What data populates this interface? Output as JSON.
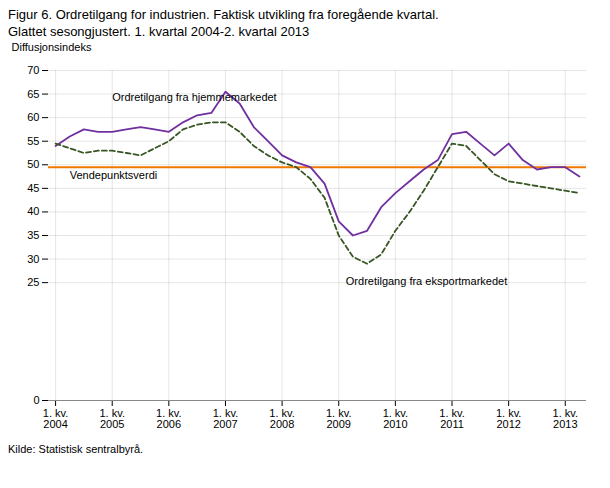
{
  "chart_data": {
    "type": "line",
    "title": "Figur 6. Ordretilgang for industrien. Faktisk utvikling fra foregående kvartal.",
    "subtitle": "Glattet sesongjustert. 1. kvartal 2004-2. kvartal 2013",
    "caption": "Kilde: Statistisk sentralbyrå.",
    "ylabel": "Diffusjonsindeks",
    "categories": [
      "1. kv.\n2004",
      null,
      null,
      null,
      "1. kv.\n2005",
      null,
      null,
      null,
      "1. kv.\n2006",
      null,
      null,
      null,
      "1. kv.\n2007",
      null,
      null,
      null,
      "1. kv.\n2008",
      null,
      null,
      null,
      "1. kv.\n2009",
      null,
      null,
      null,
      "1. kv.\n2010",
      null,
      null,
      null,
      "1. kv.\n2011",
      null,
      null,
      null,
      "1. kv.\n2012",
      null,
      null,
      null,
      "1. kv.\n2013",
      null
    ],
    "series": [
      {
        "name": "Ordretilgang fra hjemmemarkedet",
        "color": "#7030a0",
        "line_style": "solid",
        "values": [
          54.0,
          56.0,
          57.5,
          57.0,
          57.0,
          57.5,
          58.0,
          57.5,
          57.0,
          59.0,
          60.5,
          61.0,
          65.5,
          63.0,
          58.0,
          55.0,
          52.0,
          50.5,
          49.5,
          46.0,
          38.0,
          35.0,
          36.0,
          41.0,
          44.0,
          46.5,
          49.0,
          51.0,
          56.5,
          57.0,
          54.5,
          52.0,
          54.5,
          51.0,
          49.0,
          49.5,
          49.5,
          47.5
        ]
      },
      {
        "name": "Ordretilgang fra eksportmarkedet",
        "color": "#375623",
        "line_style": "dashed",
        "values": [
          54.5,
          53.5,
          52.5,
          53.0,
          53.0,
          52.5,
          52.0,
          53.5,
          55.0,
          57.5,
          58.5,
          59.0,
          59.0,
          57.0,
          54.0,
          52.0,
          50.5,
          49.5,
          47.0,
          43.0,
          35.0,
          30.5,
          29.0,
          31.0,
          36.0,
          40.0,
          44.5,
          49.5,
          54.5,
          54.0,
          51.0,
          48.0,
          46.5,
          46.0,
          45.5,
          45.0,
          44.5,
          44.0
        ]
      }
    ],
    "reference_lines": [
      {
        "name": "Vendepunktsverdi",
        "value": 49.5,
        "color": "#f07800"
      }
    ],
    "ylim": [
      0,
      70
    ],
    "yticks": [
      0,
      25,
      30,
      35,
      40,
      45,
      50,
      55,
      60,
      65,
      70
    ],
    "grid": true
  }
}
